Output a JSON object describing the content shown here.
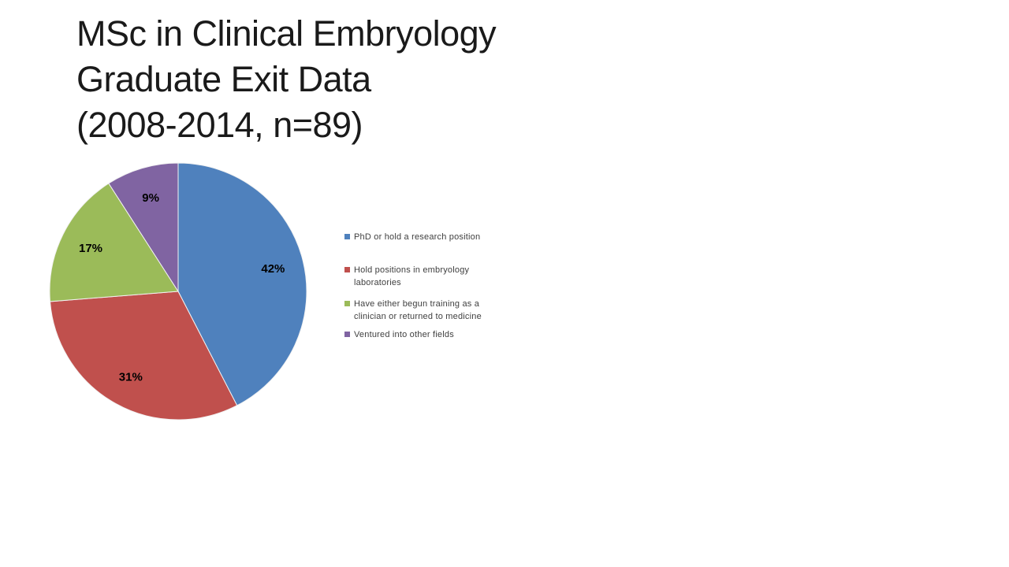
{
  "slide": {
    "background": "#ffffff"
  },
  "title": {
    "lines": [
      "MSc in Clinical Embryology",
      "Graduate Exit Data",
      "(2008-2014, n=89)"
    ],
    "color": "#1a1a1a"
  },
  "chart_data": {
    "type": "pie",
    "title": "MSc in Clinical Embryology Graduate Exit Data (2008-2014, n=89)",
    "start_angle_deg": 0,
    "direction": "clockwise",
    "legend_position": "right",
    "total": 100,
    "label_color": "#000000",
    "slices": [
      {
        "label": "PhD or hold a research position",
        "value": 42,
        "display": "42%",
        "color": "#4F81BD"
      },
      {
        "label": "Hold positions in embryology laboratories",
        "value": 31,
        "display": "31%",
        "color": "#C0504D"
      },
      {
        "label": "Have either begun training as a clinician or returned to medicine",
        "value": 17,
        "display": "17%",
        "color": "#9BBB59"
      },
      {
        "label": "Ventured into other fields",
        "value": 9,
        "display": "9%",
        "color": "#8064A2"
      }
    ]
  }
}
